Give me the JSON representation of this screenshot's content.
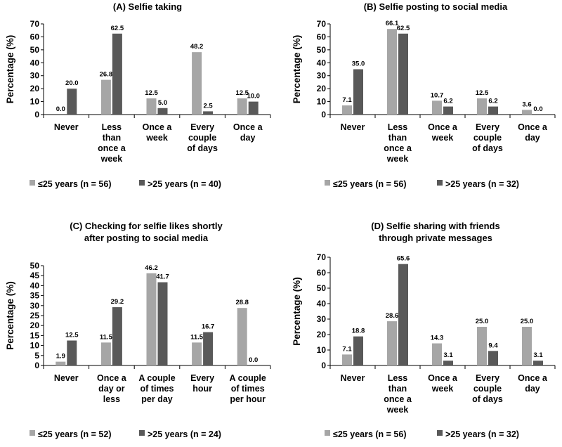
{
  "colors": {
    "young": "#a6a6a6",
    "old": "#595959",
    "axis": "#000000"
  },
  "chart_data": [
    {
      "type": "bar",
      "title": "(A) Selfie taking",
      "ylabel": "Percentage (%)",
      "ylim": [
        0,
        70
      ],
      "yticks": [
        0,
        10,
        20,
        30,
        40,
        50,
        60,
        70
      ],
      "categories": [
        "Never",
        "Less than once a week",
        "Once a week",
        "Every couple of days",
        "Once a day"
      ],
      "category_lines": [
        [
          "Never"
        ],
        [
          "Less",
          "than",
          "once a",
          "week"
        ],
        [
          "Once a",
          "week"
        ],
        [
          "Every",
          "couple",
          "of days"
        ],
        [
          "Once a",
          "day"
        ]
      ],
      "series": [
        {
          "name": "≤25 years (n = 56)",
          "values": [
            0.0,
            26.8,
            12.5,
            48.2,
            12.5
          ],
          "labels": [
            "0.0",
            "26.8",
            "12.5",
            "48.2",
            "12.5"
          ]
        },
        {
          "name": ">25 years (n = 40)",
          "values": [
            20.0,
            62.5,
            5.0,
            2.5,
            10.0
          ],
          "labels": [
            "20.0",
            "62.5",
            "5.0",
            "2.5",
            "10.0"
          ]
        }
      ],
      "legend": "bottom"
    },
    {
      "type": "bar",
      "title": "(B) Selfie posting to social media",
      "ylabel": "Percentage (%)",
      "ylim": [
        0,
        70
      ],
      "yticks": [
        0,
        10,
        20,
        30,
        40,
        50,
        60,
        70
      ],
      "categories": [
        "Never",
        "Less than once a week",
        "Once a week",
        "Every couple of days",
        "Once a day"
      ],
      "category_lines": [
        [
          "Never"
        ],
        [
          "Less",
          "than",
          "once a",
          "week"
        ],
        [
          "Once a",
          "week"
        ],
        [
          "Every",
          "couple",
          "of days"
        ],
        [
          "Once a",
          "day"
        ]
      ],
      "series": [
        {
          "name": "≤25 years (n = 56)",
          "values": [
            7.1,
            66.1,
            10.7,
            12.5,
            3.6
          ],
          "labels": [
            "7.1",
            "66.1",
            "10.7",
            "12.5",
            "3.6"
          ]
        },
        {
          "name": ">25 years (n = 32)",
          "values": [
            35.0,
            62.5,
            6.2,
            6.2,
            0.0
          ],
          "labels": [
            "35.0",
            "62.5",
            "6.2",
            "6.2",
            "0.0"
          ]
        }
      ],
      "legend": "bottom"
    },
    {
      "type": "bar",
      "title": "(C) Checking for selfie likes shortly after posting to social media",
      "title_lines": [
        "(C) Checking for selfie likes shortly",
        "after posting to social media"
      ],
      "ylabel": "Percentage (%)",
      "ylim": [
        0,
        50
      ],
      "yticks": [
        0,
        5,
        10,
        15,
        20,
        25,
        30,
        35,
        40,
        45,
        50
      ],
      "categories": [
        "Never",
        "Once a day or less",
        "A couple of times per day",
        "Every hour",
        "A couple of times per hour"
      ],
      "category_lines": [
        [
          "Never"
        ],
        [
          "Once a",
          "day or",
          "less"
        ],
        [
          "A couple",
          "of times",
          "per day"
        ],
        [
          "Every",
          "hour"
        ],
        [
          "A couple",
          "of times",
          "per hour"
        ]
      ],
      "series": [
        {
          "name": "≤25 years (n = 52)",
          "values": [
            1.9,
            11.5,
            46.2,
            11.5,
            28.8
          ],
          "labels": [
            "1.9",
            "11.5",
            "46.2",
            "11.5",
            "28.8"
          ]
        },
        {
          "name": ">25 years (n = 24)",
          "values": [
            12.5,
            29.2,
            41.7,
            16.7,
            0.0
          ],
          "labels": [
            "12.5",
            "29.2",
            "41.7",
            "16.7",
            "0.0"
          ]
        }
      ],
      "legend": "bottom"
    },
    {
      "type": "bar",
      "title": "(D) Selfie sharing with friends through private messages",
      "title_lines": [
        "(D) Selfie sharing with friends",
        "through private messages"
      ],
      "ylabel": "Percentage (%)",
      "ylim": [
        0,
        70
      ],
      "yticks": [
        0,
        10,
        20,
        30,
        40,
        50,
        60,
        70
      ],
      "categories": [
        "Never",
        "Less than once a week",
        "Once a week",
        "Every couple of days",
        "Once a day"
      ],
      "category_lines": [
        [
          "Never"
        ],
        [
          "Less",
          "than",
          "once a",
          "week"
        ],
        [
          "Once a",
          "week"
        ],
        [
          "Every",
          "couple",
          "of days"
        ],
        [
          "Once a",
          "day"
        ]
      ],
      "series": [
        {
          "name": "≤25 years (n = 56)",
          "values": [
            7.1,
            28.6,
            14.3,
            25.0,
            25.0
          ],
          "labels": [
            "7.1",
            "28.6",
            "14.3",
            "25.0",
            "25.0"
          ]
        },
        {
          "name": ">25 years (n = 32)",
          "values": [
            18.8,
            65.6,
            3.1,
            9.4,
            3.1
          ],
          "labels": [
            "18.8",
            "65.6",
            "3.1",
            "9.4",
            "3.1"
          ]
        }
      ],
      "legend": "bottom"
    }
  ]
}
